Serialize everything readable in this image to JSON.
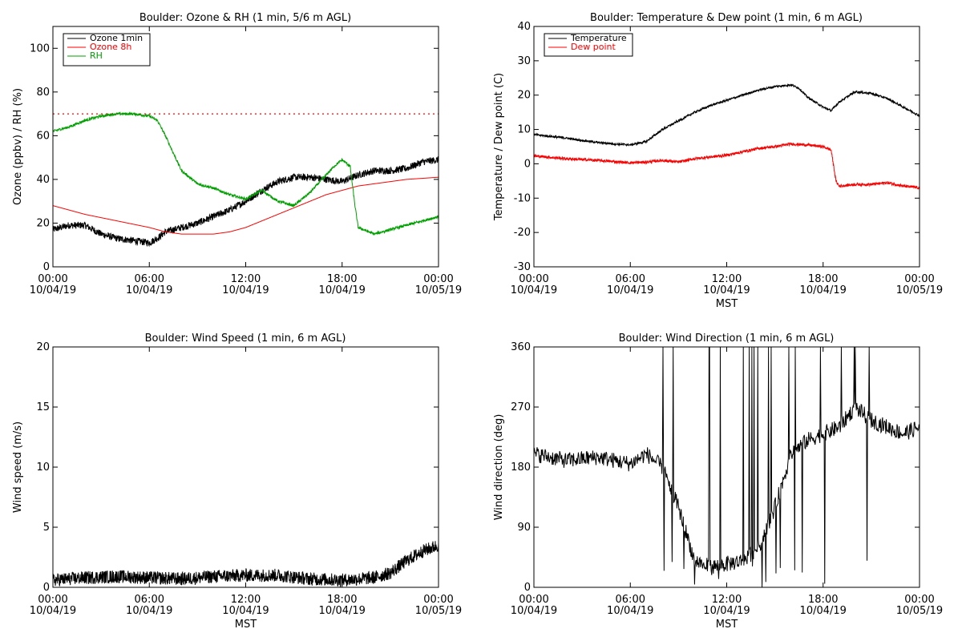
{
  "chart_data": [
    {
      "type": "line",
      "title": "Boulder: Ozone & RH (1 min, 5/6 m AGL)",
      "ylabel": "Ozone (ppbv) / RH (%)",
      "xlabel": "",
      "xlim": [
        0,
        24
      ],
      "ylim": [
        0,
        110
      ],
      "yticks": [
        0,
        20,
        40,
        60,
        80,
        100
      ],
      "xticks": [
        {
          "h": 0,
          "time": "00:00",
          "date": "10/04/19"
        },
        {
          "h": 6,
          "time": "06:00",
          "date": "10/04/19"
        },
        {
          "h": 12,
          "time": "12:00",
          "date": "10/04/19"
        },
        {
          "h": 18,
          "time": "18:00",
          "date": "10/04/19"
        },
        {
          "h": 24,
          "time": "00:00",
          "date": "10/05/19"
        }
      ],
      "legend": {
        "placement": "top-left"
      },
      "reference_line": {
        "y": 70,
        "color": "#ff0000",
        "style": "dotted"
      },
      "series": [
        {
          "name": "Ozone 1min",
          "color": "#000000",
          "noise": 1.6,
          "x": [
            0,
            1,
            2,
            3,
            4,
            5,
            6,
            6.5,
            7,
            8,
            9,
            10,
            11,
            12,
            13,
            14,
            15,
            16,
            17,
            18,
            19,
            20,
            21,
            22,
            23,
            24
          ],
          "y": [
            17,
            19,
            19,
            15,
            13,
            12,
            11,
            13,
            16,
            18,
            20,
            23,
            26,
            30,
            35,
            39,
            41,
            41,
            40,
            39,
            42,
            44,
            44,
            45,
            48,
            49
          ]
        },
        {
          "name": "Ozone 8h",
          "color": "#ff0000",
          "noise": 0,
          "x": [
            0,
            2,
            4,
            6,
            7,
            8,
            9,
            10,
            11,
            12,
            13,
            14,
            15,
            16,
            17,
            18,
            19,
            20,
            21,
            22,
            23,
            24
          ],
          "y": [
            28,
            24,
            21,
            18,
            16,
            15,
            15,
            15,
            16,
            18,
            21,
            24,
            27,
            30,
            33,
            35,
            37,
            38,
            39,
            40,
            40.5,
            41
          ]
        },
        {
          "name": "RH",
          "color": "#00a000",
          "noise": 0.6,
          "x": [
            0,
            1,
            2,
            3,
            4,
            5,
            6,
            6.5,
            7,
            7.5,
            8,
            9,
            10,
            11,
            12,
            13,
            14,
            15,
            16,
            17,
            17.5,
            18,
            18.5,
            18.8,
            19,
            20,
            21,
            22,
            23,
            24
          ],
          "y": [
            62,
            64,
            67,
            69,
            70,
            70,
            69,
            67,
            60,
            52,
            44,
            38,
            36,
            33,
            31,
            35,
            30,
            28,
            34,
            42,
            46,
            49,
            46,
            28,
            18,
            15,
            17,
            19,
            21,
            23
          ]
        }
      ]
    },
    {
      "type": "line",
      "title": "Boulder: Temperature & Dew point (1 min, 6 m AGL)",
      "ylabel": "Temperature / Dew point (C)",
      "xlabel": "MST",
      "xlim": [
        0,
        24
      ],
      "ylim": [
        -30,
        40
      ],
      "yticks": [
        -30,
        -20,
        -10,
        0,
        10,
        20,
        30,
        40
      ],
      "xticks": [
        {
          "h": 0,
          "time": "00:00",
          "date": "10/04/19"
        },
        {
          "h": 6,
          "time": "06:00",
          "date": "10/04/19"
        },
        {
          "h": 12,
          "time": "12:00",
          "date": "10/04/19"
        },
        {
          "h": 18,
          "time": "18:00",
          "date": "10/04/19"
        },
        {
          "h": 24,
          "time": "00:00",
          "date": "10/05/19"
        }
      ],
      "legend": {
        "placement": "top-left"
      },
      "series": [
        {
          "name": "Temperature",
          "color": "#000000",
          "noise": 0.3,
          "x": [
            0,
            1,
            2,
            3,
            4,
            5,
            6,
            7,
            8,
            9,
            10,
            11,
            12,
            13,
            14,
            15,
            16,
            16.5,
            17,
            17.5,
            18,
            18.5,
            19,
            20,
            21,
            22,
            23,
            24
          ],
          "y": [
            8.5,
            8,
            7.5,
            6.8,
            6.2,
            5.8,
            5.5,
            6.5,
            10,
            12.5,
            15,
            17,
            18.5,
            20,
            21.5,
            22.5,
            23,
            22,
            19.5,
            18,
            16.5,
            15.5,
            18,
            21,
            20.5,
            19,
            16.5,
            14
          ]
        },
        {
          "name": "Dew point",
          "color": "#ff0000",
          "noise": 0.4,
          "x": [
            0,
            2,
            4,
            6,
            7,
            8,
            9,
            10,
            11,
            12,
            13,
            14,
            15,
            16,
            17,
            18,
            18.5,
            18.8,
            19,
            20,
            21,
            22,
            23,
            24
          ],
          "y": [
            2.3,
            1.5,
            1,
            0.3,
            0.5,
            1,
            0.5,
            1.5,
            2,
            2.5,
            3.5,
            4.5,
            5,
            5.8,
            5.5,
            5,
            4,
            -5,
            -6.5,
            -6,
            -6,
            -5.5,
            -6.5,
            -7
          ]
        }
      ]
    },
    {
      "type": "line",
      "title": "Boulder: Wind Speed (1 min, 6 m AGL)",
      "ylabel": "Wind speed (m/s)",
      "xlabel": "MST",
      "xlim": [
        0,
        24
      ],
      "ylim": [
        0,
        20
      ],
      "yticks": [
        0,
        5,
        10,
        15,
        20
      ],
      "xticks": [
        {
          "h": 0,
          "time": "00:00",
          "date": "10/04/19"
        },
        {
          "h": 6,
          "time": "06:00",
          "date": "10/04/19"
        },
        {
          "h": 12,
          "time": "12:00",
          "date": "10/04/19"
        },
        {
          "h": 18,
          "time": "18:00",
          "date": "10/04/19"
        },
        {
          "h": 24,
          "time": "00:00",
          "date": "10/05/19"
        }
      ],
      "series": [
        {
          "name": "",
          "color": "#000000",
          "noise": 0.55,
          "x": [
            0,
            2,
            4,
            6,
            8,
            10,
            12,
            14,
            16,
            18,
            20,
            21,
            22,
            23,
            24
          ],
          "y": [
            0.6,
            0.8,
            0.9,
            0.8,
            0.7,
            0.9,
            1.0,
            1.0,
            0.7,
            0.6,
            0.8,
            1.2,
            2.2,
            3.0,
            3.5
          ]
        }
      ]
    },
    {
      "type": "line",
      "title": "Boulder: Wind Direction (1 min, 6 m AGL)",
      "ylabel": "Wind direction (deg)",
      "xlabel": "MST",
      "xlim": [
        0,
        24
      ],
      "ylim": [
        0,
        360
      ],
      "yticks": [
        0,
        90,
        180,
        270,
        360
      ],
      "xticks": [
        {
          "h": 0,
          "time": "00:00",
          "date": "10/04/19"
        },
        {
          "h": 6,
          "time": "06:00",
          "date": "10/04/19"
        },
        {
          "h": 12,
          "time": "12:00",
          "date": "10/04/19"
        },
        {
          "h": 18,
          "time": "18:00",
          "date": "10/04/19"
        },
        {
          "h": 24,
          "time": "00:00",
          "date": "10/05/19"
        }
      ],
      "series": [
        {
          "name": "",
          "color": "#000000",
          "noise": 12,
          "x": [
            0,
            2,
            4,
            6,
            7,
            8,
            9,
            10,
            11,
            12,
            13,
            14,
            15,
            16,
            17,
            18,
            19,
            20,
            21,
            22,
            23,
            24
          ],
          "y": [
            200,
            190,
            195,
            185,
            200,
            180,
            120,
            40,
            30,
            35,
            40,
            60,
            120,
            200,
            220,
            230,
            240,
            270,
            250,
            240,
            230,
            240
          ]
        }
      ]
    }
  ]
}
